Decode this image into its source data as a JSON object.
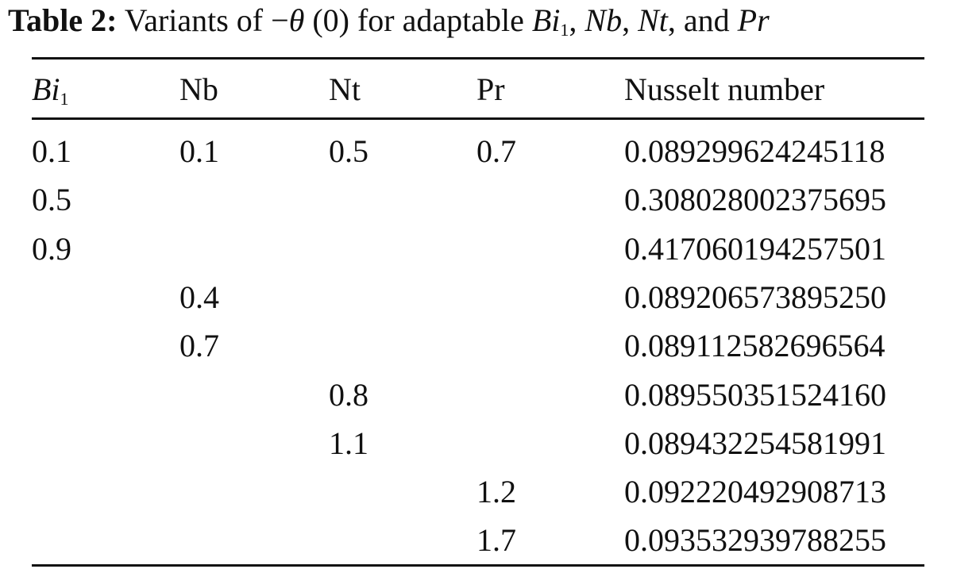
{
  "caption": {
    "label": "Table 2:",
    "text_1": "Variants of −",
    "theta": "θ",
    "text_2": " (0) for adaptable ",
    "bi": "Bi",
    "bi_sub": "1",
    "comma_1": ", ",
    "nb": "Nb",
    "comma_2": ", ",
    "nt": "Nt",
    "text_3": ",  and ",
    "pr": "Pr"
  },
  "table": {
    "headers": {
      "bi": "Bi",
      "bi_sub": "1",
      "nb": "Nb",
      "nt": "Nt",
      "pr": "Pr",
      "nusselt": "Nusselt number"
    },
    "rows": [
      [
        "0.1",
        "0.1",
        "0.5",
        "0.7",
        "0.089299624245118"
      ],
      [
        "0.5",
        "",
        "",
        "",
        "0.308028002375695"
      ],
      [
        "0.9",
        "",
        "",
        "",
        "0.417060194257501"
      ],
      [
        "",
        "0.4",
        "",
        "",
        "0.089206573895250"
      ],
      [
        "",
        "0.7",
        "",
        "",
        "0.089112582696564"
      ],
      [
        "",
        "",
        "0.8",
        "",
        "0.089550351524160"
      ],
      [
        "",
        "",
        "1.1",
        "",
        "0.089432254581991"
      ],
      [
        "",
        "",
        "",
        "1.2",
        "0.092220492908713"
      ],
      [
        "",
        "",
        "",
        "1.7",
        "0.093532939788255"
      ]
    ]
  }
}
